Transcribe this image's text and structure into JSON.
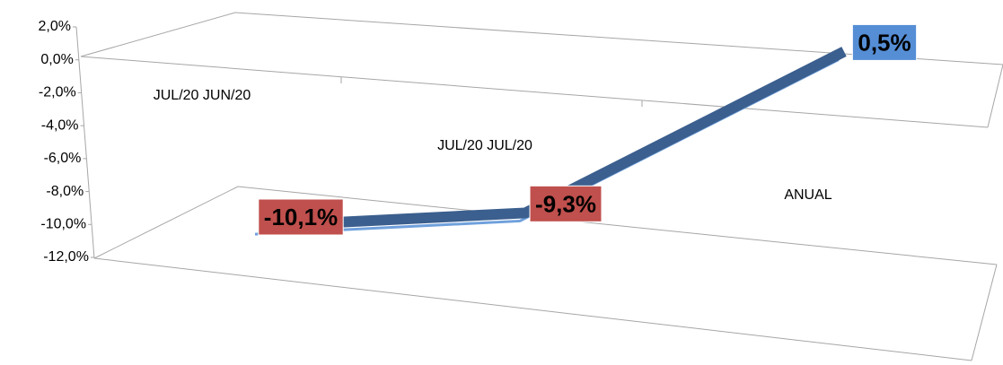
{
  "chart_data": {
    "type": "line",
    "categories": [
      "JUL/20 JUN/20",
      "JUL/20 JUL/20",
      "ANUAL"
    ],
    "series": [
      {
        "color": "#3b5f8e",
        "values": [
          -10.1,
          -9.3,
          0.5
        ],
        "value_labels": [
          "-10,1%",
          "-9,3%",
          "0,5%"
        ],
        "value_label_colors": [
          "#c0504d",
          "#c0504d",
          "#558ed5"
        ]
      }
    ],
    "ylim": [
      -12,
      2
    ],
    "yticks": [
      {
        "value": 2,
        "label": "2,0%"
      },
      {
        "value": 0,
        "label": "0,0%"
      },
      {
        "value": -2,
        "label": "-2,0%"
      },
      {
        "value": -4,
        "label": "-4,0%"
      },
      {
        "value": -6,
        "label": "-6,0%"
      },
      {
        "value": -8,
        "label": "-8,0%"
      },
      {
        "value": -10,
        "label": "-10,0%"
      },
      {
        "value": -12,
        "label": "-12,0%"
      }
    ]
  }
}
